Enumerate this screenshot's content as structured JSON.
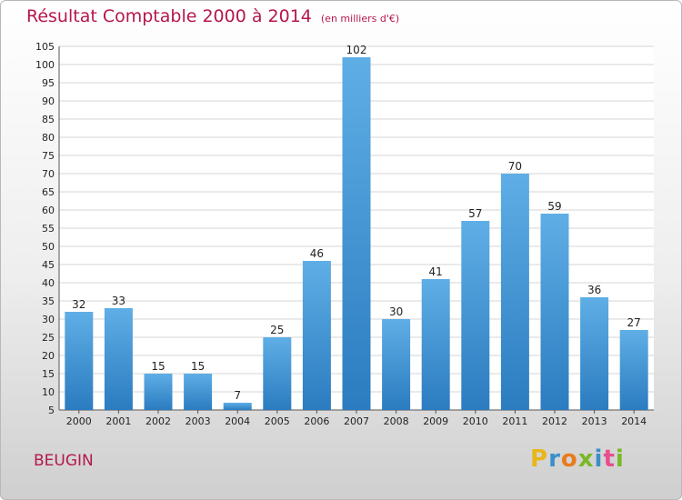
{
  "title": "Résultat Comptable 2000 à 2014",
  "unit": "(en milliers d'€)",
  "place": "BEUGIN",
  "brand": {
    "letters": [
      "P",
      "r",
      "o",
      "x",
      "i",
      "t",
      "i"
    ],
    "colors": [
      "#e8b61b",
      "#3c8fc9",
      "#e87c1c",
      "#7ab826",
      "#3c8fc9",
      "#e84e8f",
      "#7ab826"
    ]
  },
  "colors": {
    "bar_light": "#5faee6",
    "bar_dark": "#2b7cc0",
    "grid": "#d4d4d4",
    "title": "#b5174d"
  },
  "chart_data": {
    "type": "bar",
    "title": "Résultat Comptable 2000 à 2014",
    "subtitle": "(en milliers d'€)",
    "categories": [
      "2000",
      "2001",
      "2002",
      "2003",
      "2004",
      "2005",
      "2006",
      "2007",
      "2008",
      "2009",
      "2010",
      "2011",
      "2012",
      "2013",
      "2014"
    ],
    "values": [
      32,
      33,
      15,
      15,
      7,
      25,
      46,
      102,
      30,
      41,
      57,
      70,
      59,
      36,
      27
    ],
    "ylim": [
      5,
      105
    ],
    "ytick_step": 5,
    "grid": true
  }
}
